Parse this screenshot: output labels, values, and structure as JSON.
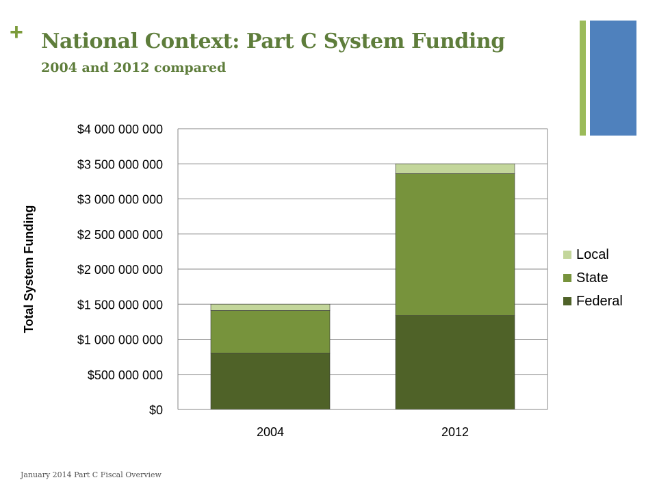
{
  "slide": {
    "title": "National Context:  Part C System Funding",
    "subtitle": "2004 and 2012 compared",
    "footer": "January 2014 Part C Fiscal Overview",
    "accent_colors": {
      "plus": "#7b9b3a",
      "bar_green": "#9bbb59",
      "bar_blue": "#4f81bd",
      "title": "#5e7d3b"
    }
  },
  "chart_data": {
    "type": "bar",
    "stacked": true,
    "categories": [
      "2004",
      "2012"
    ],
    "series": [
      {
        "name": "Federal",
        "color": "#4f6228",
        "values": [
          800000000,
          1340000000
        ]
      },
      {
        "name": "State",
        "color": "#77933c",
        "values": [
          610000000,
          2020000000
        ]
      },
      {
        "name": "Local",
        "color": "#c3d69b",
        "values": [
          90000000,
          140000000
        ]
      }
    ],
    "ylabel": "Total System Funding",
    "xlabel": "",
    "ylim": [
      0,
      4000000000
    ],
    "yticks": [
      0,
      500000000,
      1000000000,
      1500000000,
      2000000000,
      2500000000,
      3000000000,
      3500000000,
      4000000000
    ],
    "ytick_labels": [
      "$0",
      "$500 000 000",
      "$1 000 000 000",
      "$1 500 000 000",
      "$2 000 000 000",
      "$2 500 000 000",
      "$3 000 000 000",
      "$3 500 000 000",
      "$4 000 000 000"
    ],
    "legend_order": [
      "Local",
      "State",
      "Federal"
    ],
    "legend_position": "right",
    "grid": true
  }
}
